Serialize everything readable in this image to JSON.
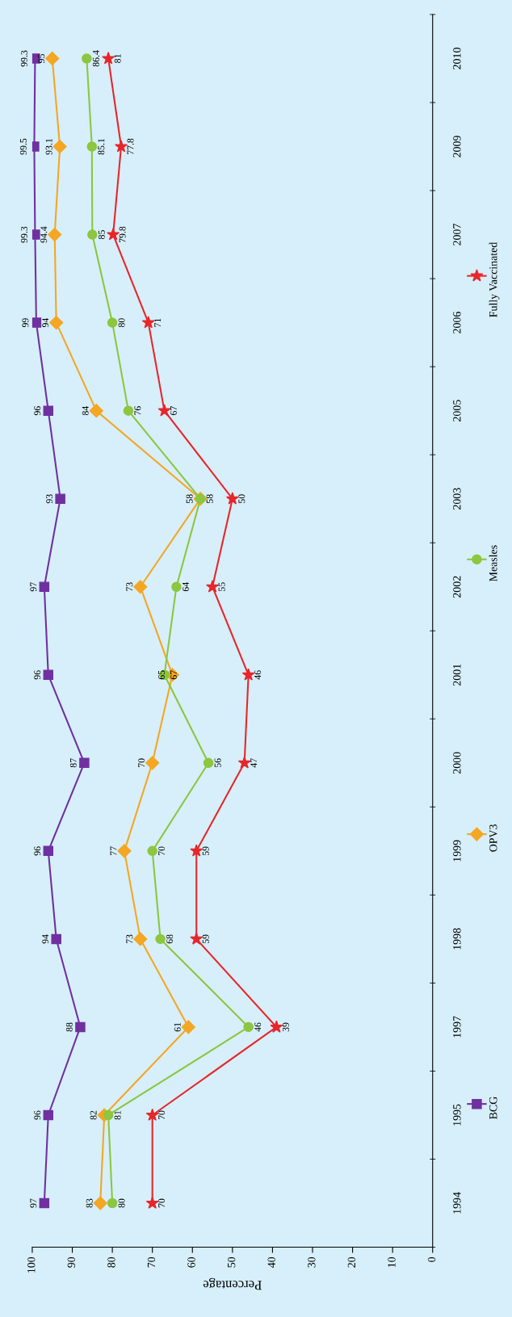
{
  "chart_data": {
    "type": "line",
    "orientation": "horizontal",
    "xlabel": "Percentage",
    "categories": [
      "2010",
      "2009",
      "2007",
      "2006",
      "2005",
      "2003",
      "2002",
      "2001",
      "2000",
      "1999",
      "1998",
      "1997",
      "1995",
      "1994"
    ],
    "series": [
      {
        "name": "BCG",
        "color": "#7030a0",
        "marker": "square",
        "values": [
          99.3,
          99.5,
          99.3,
          99,
          96,
          93,
          97,
          96,
          87,
          96,
          94,
          88,
          96,
          97
        ]
      },
      {
        "name": "OPV3",
        "color": "#f5a623",
        "marker": "diamond",
        "values": [
          95,
          93.1,
          94.4,
          94,
          84,
          58,
          73,
          65,
          70,
          77,
          73,
          61,
          82,
          83
        ]
      },
      {
        "name": "Measles",
        "color": "#8dc63f",
        "marker": "circle",
        "values": [
          86.4,
          85.1,
          85,
          80,
          76,
          58,
          64,
          67,
          56,
          70,
          68,
          46,
          81,
          80
        ]
      },
      {
        "name": "Fully Vaccinated",
        "color": "#e8262a",
        "marker": "star",
        "values": [
          81,
          77.8,
          79.8,
          71,
          67,
          50,
          55,
          46,
          47,
          59,
          59,
          39,
          70,
          70
        ]
      }
    ],
    "xlim": [
      100,
      0
    ],
    "xticks": [
      0,
      10,
      20,
      30,
      40,
      50,
      60,
      70,
      80,
      90,
      100
    ],
    "data_labels": true,
    "legend": "right",
    "grid": false
  }
}
